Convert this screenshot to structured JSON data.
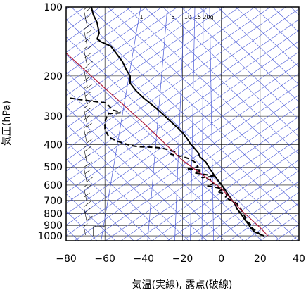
{
  "chart_data": {
    "type": "line",
    "title": "",
    "xlabel": "気温(実線), 露点(破線)",
    "ylabel": "気圧(hPa)",
    "xlim": [
      -80,
      40
    ],
    "ylim": [
      1050,
      100
    ],
    "y_scale": "log",
    "x_ticks": [
      -80,
      -60,
      -40,
      -20,
      0,
      20,
      40
    ],
    "y_ticks": [
      100,
      200,
      300,
      400,
      500,
      600,
      700,
      800,
      900,
      1000
    ],
    "mixing_ratio_labels": [
      "1",
      "5",
      "10",
      "15",
      "20g"
    ],
    "grid": true,
    "series": [
      {
        "role": "temperature",
        "style": "solid",
        "color": "#000000",
        "points": [
          [
            -67,
            100
          ],
          [
            -66,
            108
          ],
          [
            -64,
            117
          ],
          [
            -63,
            130
          ],
          [
            -64,
            138
          ],
          [
            -62,
            142
          ],
          [
            -57,
            148
          ],
          [
            -54,
            160
          ],
          [
            -51,
            173
          ],
          [
            -49,
            188
          ],
          [
            -47,
            200
          ],
          [
            -47,
            215
          ],
          [
            -44,
            232
          ],
          [
            -40,
            250
          ],
          [
            -34,
            275
          ],
          [
            -29,
            300
          ],
          [
            -25,
            323
          ],
          [
            -22,
            340
          ],
          [
            -20,
            354
          ],
          [
            -18,
            372
          ],
          [
            -16,
            395
          ],
          [
            -14,
            413
          ],
          [
            -12,
            432
          ],
          [
            -11,
            452
          ],
          [
            -8,
            476
          ],
          [
            -6,
            508
          ],
          [
            -4,
            538
          ],
          [
            -2,
            568
          ],
          [
            1,
            612
          ],
          [
            3,
            650
          ],
          [
            5,
            690
          ],
          [
            7,
            725
          ],
          [
            8,
            760
          ],
          [
            10,
            800
          ],
          [
            12,
            848
          ],
          [
            14,
            890
          ],
          [
            15,
            920
          ],
          [
            17,
            960
          ],
          [
            20,
            985
          ],
          [
            22,
            1000
          ]
        ]
      },
      {
        "role": "dewpoint",
        "style": "dashed",
        "color": "#000000",
        "points": [
          [
            -78,
            250
          ],
          [
            -71,
            255
          ],
          [
            -60,
            262
          ],
          [
            -58,
            270
          ],
          [
            -56,
            282
          ],
          [
            -53,
            286
          ],
          [
            -52,
            290
          ],
          [
            -58,
            292
          ],
          [
            -59,
            300
          ],
          [
            -60,
            318
          ],
          [
            -60,
            340
          ],
          [
            -59,
            355
          ],
          [
            -58,
            370
          ],
          [
            -54,
            385
          ],
          [
            -48,
            400
          ],
          [
            -45,
            405
          ],
          [
            -42,
            408
          ],
          [
            -35,
            410
          ],
          [
            -32,
            412
          ],
          [
            -27,
            420
          ],
          [
            -24,
            430
          ],
          [
            -26,
            440
          ],
          [
            -20,
            450
          ],
          [
            -16,
            462
          ],
          [
            -13,
            480
          ],
          [
            -12,
            500
          ],
          [
            -18,
            510
          ],
          [
            -10,
            516
          ],
          [
            -14,
            530
          ],
          [
            -8,
            540
          ],
          [
            -3,
            548
          ],
          [
            -10,
            556
          ],
          [
            -5,
            572
          ],
          [
            -4,
            590
          ],
          [
            -7,
            605
          ],
          [
            -2,
            615
          ],
          [
            1,
            625
          ],
          [
            -2,
            640
          ],
          [
            3,
            660
          ],
          [
            2,
            680
          ],
          [
            5,
            700
          ],
          [
            8,
            722
          ],
          [
            9,
            745
          ],
          [
            10,
            762
          ],
          [
            11,
            790
          ],
          [
            12,
            822
          ],
          [
            13,
            860
          ],
          [
            15,
            890
          ],
          [
            16,
            925
          ],
          [
            18,
            955
          ],
          [
            20,
            985
          ],
          [
            22,
            1000
          ]
        ]
      },
      {
        "role": "parcel",
        "style": "solid",
        "color": "#b02040",
        "points": [
          [
            -80,
            159
          ],
          [
            -40,
            322
          ],
          [
            -20,
            468
          ],
          [
            0,
            620
          ],
          [
            10,
            770
          ],
          [
            20,
            920
          ],
          [
            24,
            1000
          ]
        ]
      }
    ]
  }
}
